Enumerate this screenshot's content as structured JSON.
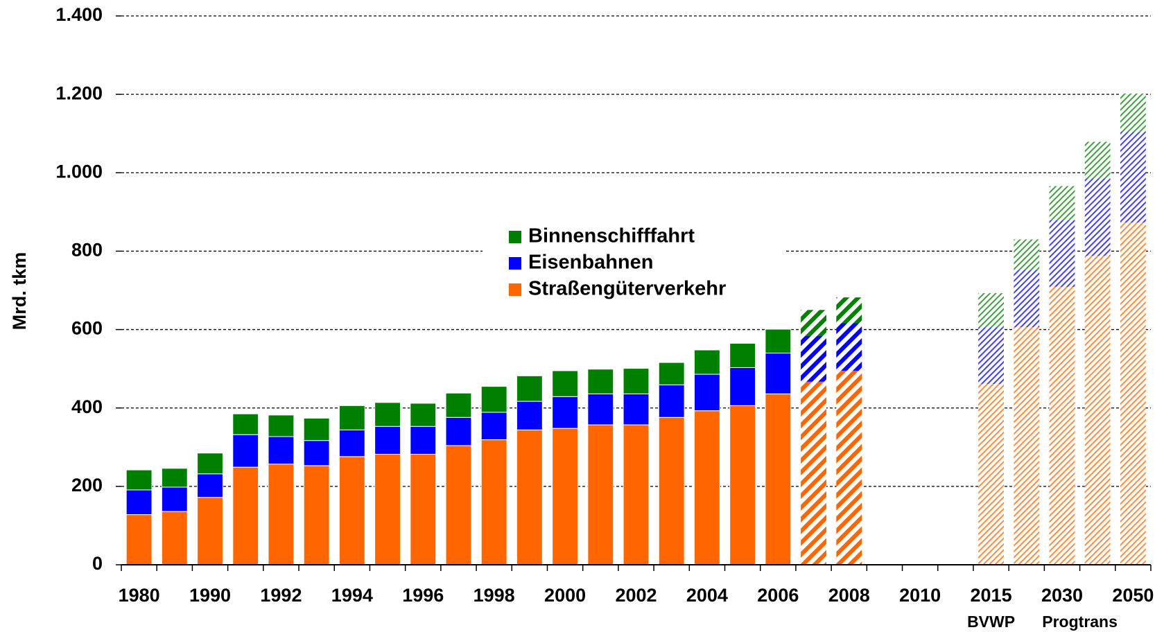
{
  "chart_data": {
    "type": "stacked_bar",
    "y_label": "Mrd. tkm",
    "categories": [
      "1980",
      null,
      "1990",
      null,
      "1992",
      null,
      "1994",
      null,
      "1996",
      null,
      "1998",
      null,
      "2000",
      null,
      "2002",
      null,
      "2004",
      null,
      "2006",
      null,
      "2008",
      null,
      "2010",
      null,
      "2015",
      null,
      "2030",
      null,
      "2050"
    ],
    "styles": [
      "solid",
      "solid",
      "solid",
      "solid",
      "solid",
      "solid",
      "solid",
      "solid",
      "solid",
      "solid",
      "solid",
      "solid",
      "solid",
      "solid",
      "solid",
      "solid",
      "solid",
      "solid",
      "solid",
      "hatch",
      "hatch",
      null,
      null,
      null,
      "light",
      "light",
      "light",
      "light",
      "light"
    ],
    "series": [
      {
        "name": "Straßengüterverkehr",
        "color": "#ff6600",
        "values": [
          128,
          136,
          172,
          249,
          257,
          253,
          276,
          282,
          282,
          304,
          319,
          344,
          348,
          357,
          357,
          376,
          393,
          406,
          436,
          467,
          495,
          null,
          null,
          null,
          461,
          606,
          709,
          788,
          873
        ]
      },
      {
        "name": "Eisenbahnen",
        "color": "#0000ff",
        "values": [
          63,
          62,
          60,
          83,
          70,
          64,
          68,
          71,
          71,
          72,
          70,
          73,
          81,
          79,
          79,
          83,
          93,
          97,
          104,
          117,
          121,
          null,
          null,
          null,
          145,
          146,
          170,
          198,
          231
        ]
      },
      {
        "name": "Binnenschifffahrt",
        "color": "#008000",
        "values": [
          51,
          48,
          53,
          53,
          55,
          57,
          62,
          61,
          59,
          62,
          66,
          65,
          66,
          63,
          65,
          57,
          62,
          62,
          61,
          66,
          66,
          null,
          null,
          null,
          87,
          78,
          87,
          93,
          98
        ]
      }
    ],
    "annotations": [
      "BVWP",
      "Progtrans"
    ],
    "ylim": [
      0,
      1400
    ],
    "yticks": [
      0,
      200,
      400,
      600,
      800,
      {
        "value": 1000,
        "label": "1.000"
      },
      {
        "value": 1200,
        "label": "1.200"
      },
      {
        "value": 1400,
        "label": "1.400"
      }
    ],
    "grid": true,
    "legend": "center"
  }
}
